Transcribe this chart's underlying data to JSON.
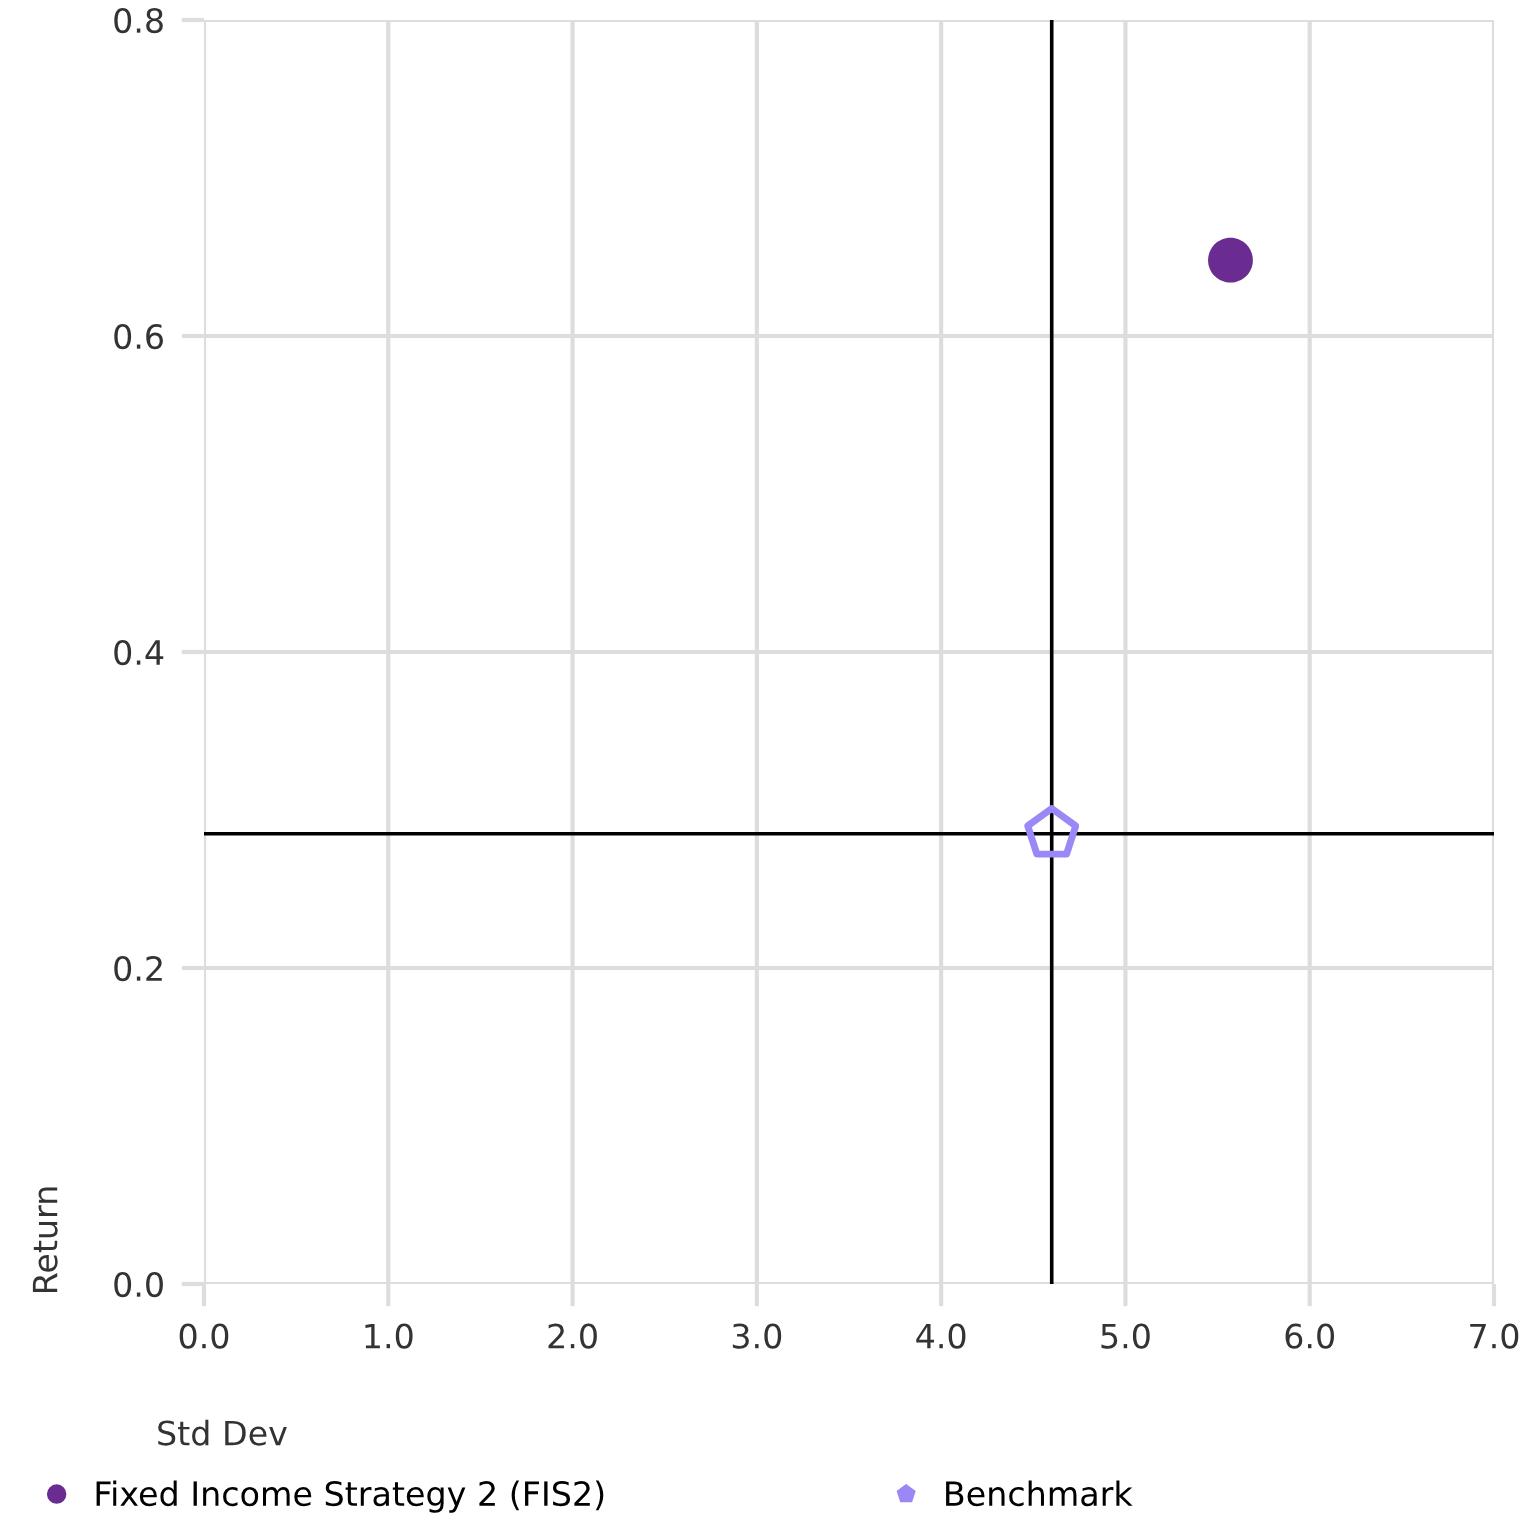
{
  "chart_data": {
    "type": "scatter",
    "xlabel": "Std Dev",
    "ylabel": "Return",
    "series": [
      {
        "name": "Fixed Income Strategy 2 (FIS2)",
        "color": "#6a2c91",
        "x": [
          5.57
        ],
        "values": [
          0.648
        ],
        "marker": "circle"
      },
      {
        "name": "Benchmark",
        "color": "#9b87f5",
        "x": [
          4.6
        ],
        "values": [
          0.285
        ]
      }
    ],
    "xlim": [
      0,
      7
    ],
    "ylim": [
      0,
      0.8
    ],
    "xticks": [
      {
        "value": 0,
        "label": "0.0"
      },
      {
        "value": 1,
        "label": "1.0"
      },
      {
        "value": 2,
        "label": "2.0"
      },
      {
        "value": 3,
        "label": "3.0"
      },
      {
        "value": 4,
        "label": "4.0"
      },
      {
        "value": 5,
        "label": "5.0"
      },
      {
        "value": 6,
        "label": "6.0"
      },
      {
        "value": 7,
        "label": "7.0"
      }
    ],
    "yticks": [
      {
        "value": 0,
        "label": "0.0"
      },
      {
        "value": 0.2,
        "label": "0.2"
      },
      {
        "value": 0.4,
        "label": "0.4"
      },
      {
        "value": 0.6,
        "label": "0.6"
      },
      {
        "value": 0.8,
        "label": "0.8"
      }
    ],
    "ref_lines": [
      {
        "axis": "x",
        "value": 4.6,
        "color": "#000000"
      },
      {
        "axis": "y",
        "value": 0.285,
        "color": "#000000"
      }
    ],
    "grid": true,
    "legend": "bottom left"
  }
}
